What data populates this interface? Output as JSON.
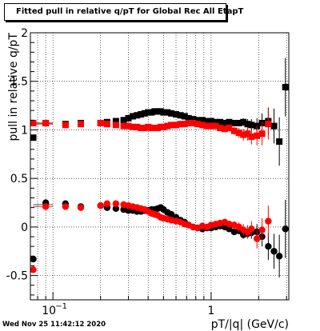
{
  "title": "Fitted pull in relative q/pT for Global Rec All EtapT",
  "timestamp": "Wed Nov 25 11:42:12 2020",
  "chart_data": {
    "type": "scatter",
    "title": "Fitted pull in relative q/pT for Global Rec All EtapT",
    "xlabel": "pT/|q| (GeV/c)",
    "ylabel": "pull in relative q/pT",
    "xscale": "log",
    "xlim": [
      0.072,
      3.1
    ],
    "ylim": [
      -0.75,
      2.0
    ],
    "y_ticks": [
      "-0.5",
      "0",
      "0.5",
      "1",
      "1.5",
      "2"
    ],
    "x_ticks": [
      "10^{-1}",
      "1"
    ],
    "grid": true,
    "series": [
      {
        "color": "#000000",
        "marker": "square",
        "x": [
          0.075,
          0.09,
          0.12,
          0.15,
          0.2,
          0.22,
          0.25,
          0.28,
          0.3,
          0.32,
          0.34,
          0.36,
          0.38,
          0.4,
          0.42,
          0.44,
          0.46,
          0.48,
          0.5,
          0.53,
          0.56,
          0.6,
          0.64,
          0.68,
          0.72,
          0.77,
          0.82,
          0.88,
          0.94,
          1.0,
          1.07,
          1.14,
          1.22,
          1.3,
          1.4,
          1.5,
          1.6,
          1.7,
          1.8,
          1.95,
          2.1,
          2.3,
          2.5,
          2.7,
          2.95
        ],
        "y": [
          0.92,
          1.07,
          1.06,
          1.07,
          1.07,
          1.08,
          1.09,
          1.1,
          1.12,
          1.14,
          1.15,
          1.16,
          1.17,
          1.18,
          1.18,
          1.19,
          1.19,
          1.19,
          1.18,
          1.18,
          1.17,
          1.16,
          1.15,
          1.14,
          1.12,
          1.11,
          1.1,
          1.1,
          1.09,
          1.09,
          1.08,
          1.08,
          1.07,
          1.08,
          1.07,
          1.07,
          1.08,
          1.06,
          1.05,
          1.04,
          1.07,
          1.09,
          1.04,
          0.88,
          1.44
        ],
        "yerr": [
          0.02,
          0.01,
          0.01,
          0.01,
          0.01,
          0.01,
          0.01,
          0.01,
          0.01,
          0.01,
          0.01,
          0.01,
          0.01,
          0.01,
          0.01,
          0.01,
          0.01,
          0.01,
          0.01,
          0.01,
          0.01,
          0.01,
          0.01,
          0.01,
          0.01,
          0.01,
          0.01,
          0.01,
          0.01,
          0.01,
          0.01,
          0.02,
          0.02,
          0.02,
          0.03,
          0.03,
          0.04,
          0.05,
          0.06,
          0.08,
          0.1,
          0.14,
          0.18,
          0.25,
          0.3
        ]
      },
      {
        "color": "#ff0000",
        "marker": "square",
        "x": [
          0.075,
          0.09,
          0.12,
          0.15,
          0.2,
          0.22,
          0.25,
          0.28,
          0.3,
          0.32,
          0.34,
          0.36,
          0.38,
          0.4,
          0.42,
          0.44,
          0.46,
          0.48,
          0.5,
          0.53,
          0.56,
          0.6,
          0.64,
          0.68,
          0.72,
          0.77,
          0.82,
          0.88,
          0.94,
          1.0,
          1.07,
          1.14,
          1.22,
          1.3,
          1.4,
          1.5,
          1.6,
          1.7,
          1.8,
          1.95,
          2.1,
          2.3
        ],
        "y": [
          1.07,
          1.07,
          1.05,
          1.06,
          1.07,
          1.06,
          1.05,
          1.04,
          1.04,
          1.03,
          1.03,
          1.02,
          1.02,
          1.03,
          1.02,
          1.02,
          1.02,
          1.03,
          1.03,
          1.04,
          1.05,
          1.05,
          1.06,
          1.06,
          1.07,
          1.07,
          1.06,
          1.05,
          1.04,
          1.04,
          1.04,
          1.02,
          1.01,
          1.02,
          0.99,
          0.97,
          0.95,
          0.96,
          0.93,
          0.94,
          0.96,
          1.06
        ],
        "yerr": [
          0.02,
          0.01,
          0.01,
          0.01,
          0.01,
          0.01,
          0.01,
          0.01,
          0.01,
          0.01,
          0.01,
          0.01,
          0.01,
          0.01,
          0.01,
          0.01,
          0.01,
          0.01,
          0.01,
          0.01,
          0.01,
          0.01,
          0.01,
          0.01,
          0.01,
          0.01,
          0.01,
          0.01,
          0.02,
          0.02,
          0.02,
          0.02,
          0.03,
          0.03,
          0.04,
          0.05,
          0.06,
          0.07,
          0.08,
          0.1,
          0.12,
          0.16
        ]
      },
      {
        "color": "#000000",
        "marker": "circle",
        "x": [
          0.075,
          0.09,
          0.12,
          0.15,
          0.2,
          0.22,
          0.25,
          0.28,
          0.3,
          0.32,
          0.34,
          0.36,
          0.38,
          0.4,
          0.42,
          0.44,
          0.46,
          0.48,
          0.5,
          0.53,
          0.56,
          0.6,
          0.64,
          0.68,
          0.72,
          0.77,
          0.82,
          0.88,
          0.94,
          1.0,
          1.07,
          1.14,
          1.22,
          1.3,
          1.4,
          1.5,
          1.6,
          1.7,
          1.8,
          1.95,
          2.1,
          2.3,
          2.5,
          2.7,
          2.95
        ],
        "y": [
          -0.33,
          0.25,
          0.24,
          0.21,
          0.22,
          0.2,
          0.19,
          0.18,
          0.17,
          0.17,
          0.16,
          0.16,
          0.17,
          0.17,
          0.18,
          0.18,
          0.19,
          0.2,
          0.18,
          0.15,
          0.13,
          0.1,
          0.07,
          0.05,
          0.02,
          0.0,
          -0.01,
          -0.02,
          -0.01,
          -0.01,
          0.0,
          0.01,
          0.0,
          -0.02,
          -0.05,
          -0.04,
          -0.08,
          -0.07,
          -0.06,
          -0.05,
          -0.1,
          -0.2,
          -0.25,
          -0.3,
          -0.02
        ],
        "yerr": [
          0.02,
          0.01,
          0.01,
          0.01,
          0.01,
          0.01,
          0.01,
          0.01,
          0.01,
          0.01,
          0.01,
          0.01,
          0.01,
          0.01,
          0.01,
          0.01,
          0.01,
          0.01,
          0.01,
          0.01,
          0.01,
          0.01,
          0.01,
          0.01,
          0.01,
          0.01,
          0.01,
          0.01,
          0.01,
          0.01,
          0.01,
          0.02,
          0.02,
          0.02,
          0.03,
          0.03,
          0.04,
          0.05,
          0.06,
          0.08,
          0.1,
          0.14,
          0.18,
          0.22,
          0.3
        ]
      },
      {
        "color": "#ff0000",
        "marker": "circle",
        "x": [
          0.075,
          0.09,
          0.12,
          0.15,
          0.2,
          0.22,
          0.25,
          0.28,
          0.3,
          0.32,
          0.34,
          0.36,
          0.38,
          0.4,
          0.42,
          0.44,
          0.46,
          0.48,
          0.5,
          0.53,
          0.56,
          0.6,
          0.64,
          0.68,
          0.72,
          0.77,
          0.82,
          0.88,
          0.94,
          1.0,
          1.07,
          1.14,
          1.22,
          1.3,
          1.4,
          1.5,
          1.6,
          1.7,
          1.8,
          1.95,
          2.1,
          2.3
        ],
        "y": [
          -0.44,
          0.21,
          0.21,
          0.2,
          0.22,
          0.24,
          0.24,
          0.23,
          0.22,
          0.21,
          0.2,
          0.19,
          0.18,
          0.16,
          0.14,
          0.13,
          0.12,
          0.1,
          0.09,
          0.08,
          0.07,
          0.06,
          0.05,
          0.03,
          0.02,
          0.0,
          -0.01,
          0.01,
          0.0,
          0.02,
          0.03,
          0.04,
          0.05,
          0.03,
          0.02,
          0.0,
          -0.03,
          -0.05,
          -0.02,
          -0.12,
          -0.03,
          0.06
        ],
        "yerr": [
          0.02,
          0.01,
          0.01,
          0.01,
          0.01,
          0.01,
          0.01,
          0.01,
          0.01,
          0.01,
          0.01,
          0.01,
          0.01,
          0.01,
          0.01,
          0.01,
          0.01,
          0.01,
          0.01,
          0.01,
          0.01,
          0.01,
          0.01,
          0.01,
          0.01,
          0.01,
          0.01,
          0.01,
          0.02,
          0.02,
          0.02,
          0.02,
          0.03,
          0.03,
          0.04,
          0.05,
          0.06,
          0.07,
          0.08,
          0.1,
          0.12,
          0.16
        ]
      }
    ]
  }
}
